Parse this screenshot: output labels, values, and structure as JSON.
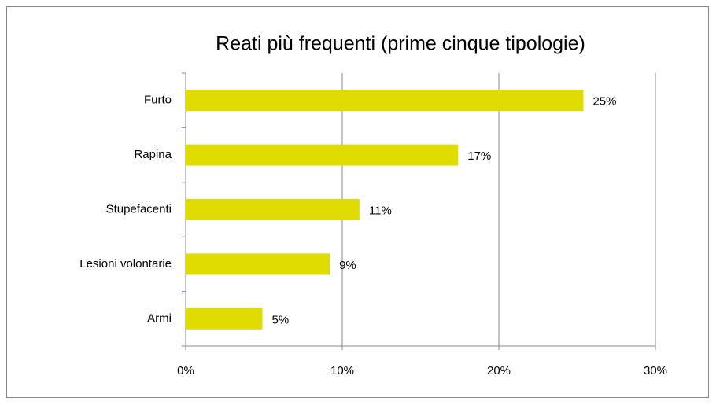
{
  "chart_data": {
    "type": "bar",
    "orientation": "horizontal",
    "title": "Reati più frequenti (prime cinque tipologie)",
    "categories": [
      "Furto",
      "Rapina",
      "Stupefacenti",
      "Lesioni volontarie",
      "Armi"
    ],
    "values": [
      25.4,
      17.4,
      11.1,
      9.2,
      4.9
    ],
    "value_labels": [
      "25%",
      "17%",
      "11%",
      "9%",
      "5%"
    ],
    "color": "#e0dc00",
    "xlim": [
      0,
      30
    ],
    "xticks": [
      {
        "value": 0,
        "label": "0%"
      },
      {
        "value": 10,
        "label": "10%"
      },
      {
        "value": 20,
        "label": "20%"
      },
      {
        "value": 30,
        "label": "30%"
      }
    ],
    "grid": true
  }
}
